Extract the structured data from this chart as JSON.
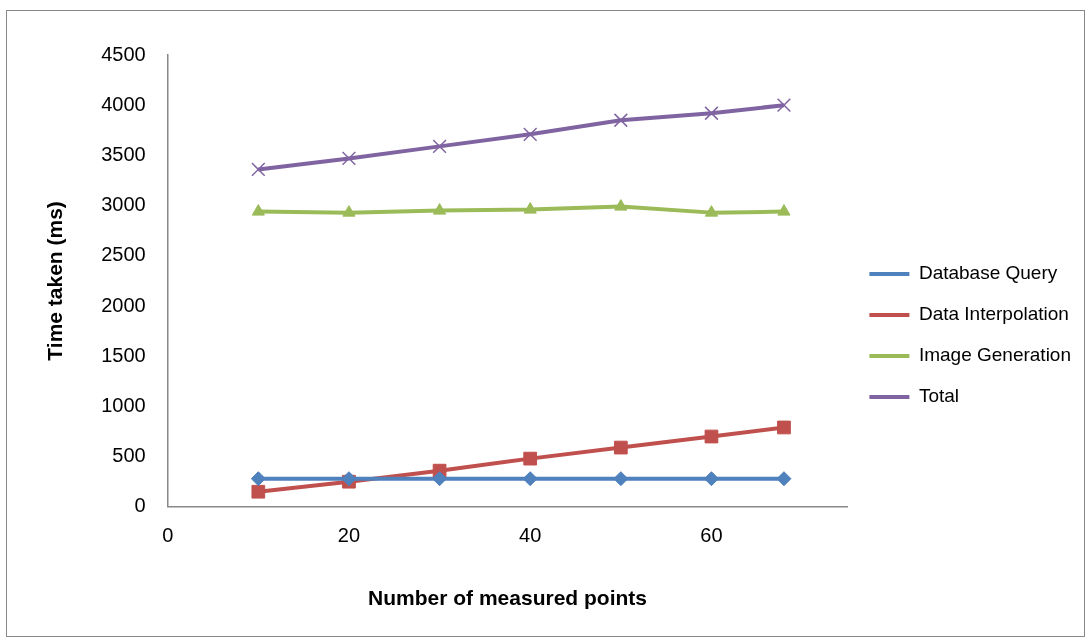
{
  "chart_data": {
    "type": "line",
    "xlabel": "Number of measured points",
    "ylabel": "Time taken (ms)",
    "x": [
      10,
      20,
      30,
      40,
      50,
      60,
      68
    ],
    "xlim": [
      0,
      75
    ],
    "xticks": [
      0,
      20,
      40,
      60
    ],
    "ylim": [
      0,
      4500
    ],
    "yticks": [
      0,
      500,
      1000,
      1500,
      2000,
      2500,
      3000,
      3500,
      4000,
      4500
    ],
    "grid": false,
    "legend": "right",
    "series": [
      {
        "name": "Database Query",
        "color": "#4f81bd",
        "marker": "diamond",
        "values": [
          280,
          280,
          280,
          280,
          280,
          280,
          280
        ]
      },
      {
        "name": "Data Interpolation",
        "color": "#c0504d",
        "marker": "square",
        "values": [
          150,
          250,
          360,
          480,
          590,
          700,
          790
        ]
      },
      {
        "name": "Image Generation",
        "color": "#9bbb59",
        "marker": "triangle",
        "values": [
          2940,
          2930,
          2950,
          2960,
          2990,
          2930,
          2940
        ]
      },
      {
        "name": "Total",
        "color": "#8064a2",
        "marker": "cross",
        "values": [
          3360,
          3470,
          3590,
          3710,
          3850,
          3920,
          4000
        ]
      }
    ]
  }
}
